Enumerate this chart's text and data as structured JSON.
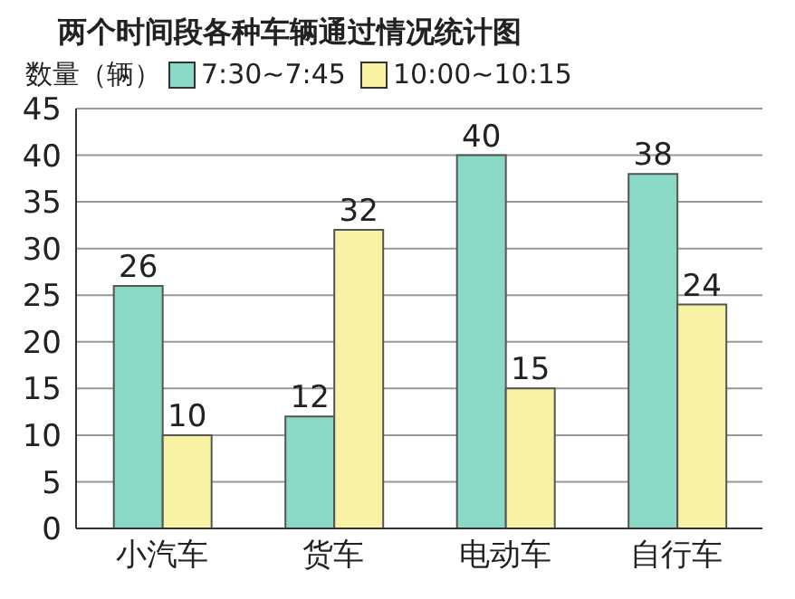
{
  "chart_data": {
    "type": "bar",
    "title": "两个时间段各种车辆通过情况统计图",
    "ylabel": "数量（辆）",
    "categories": [
      "小汽车",
      "货车",
      "电动车",
      "自行车"
    ],
    "series": [
      {
        "name": "7:30~7:45",
        "color": "#8ad8c6",
        "values": [
          26,
          12,
          40,
          38
        ]
      },
      {
        "name": "10:00~10:15",
        "color": "#f8f3a4",
        "values": [
          10,
          32,
          15,
          24
        ]
      }
    ],
    "ylim": [
      0,
      45
    ],
    "yticks": [
      0,
      5,
      10,
      15,
      20,
      25,
      30,
      35,
      40,
      45
    ],
    "grid": "y",
    "legend": "top",
    "data_labels": true
  }
}
